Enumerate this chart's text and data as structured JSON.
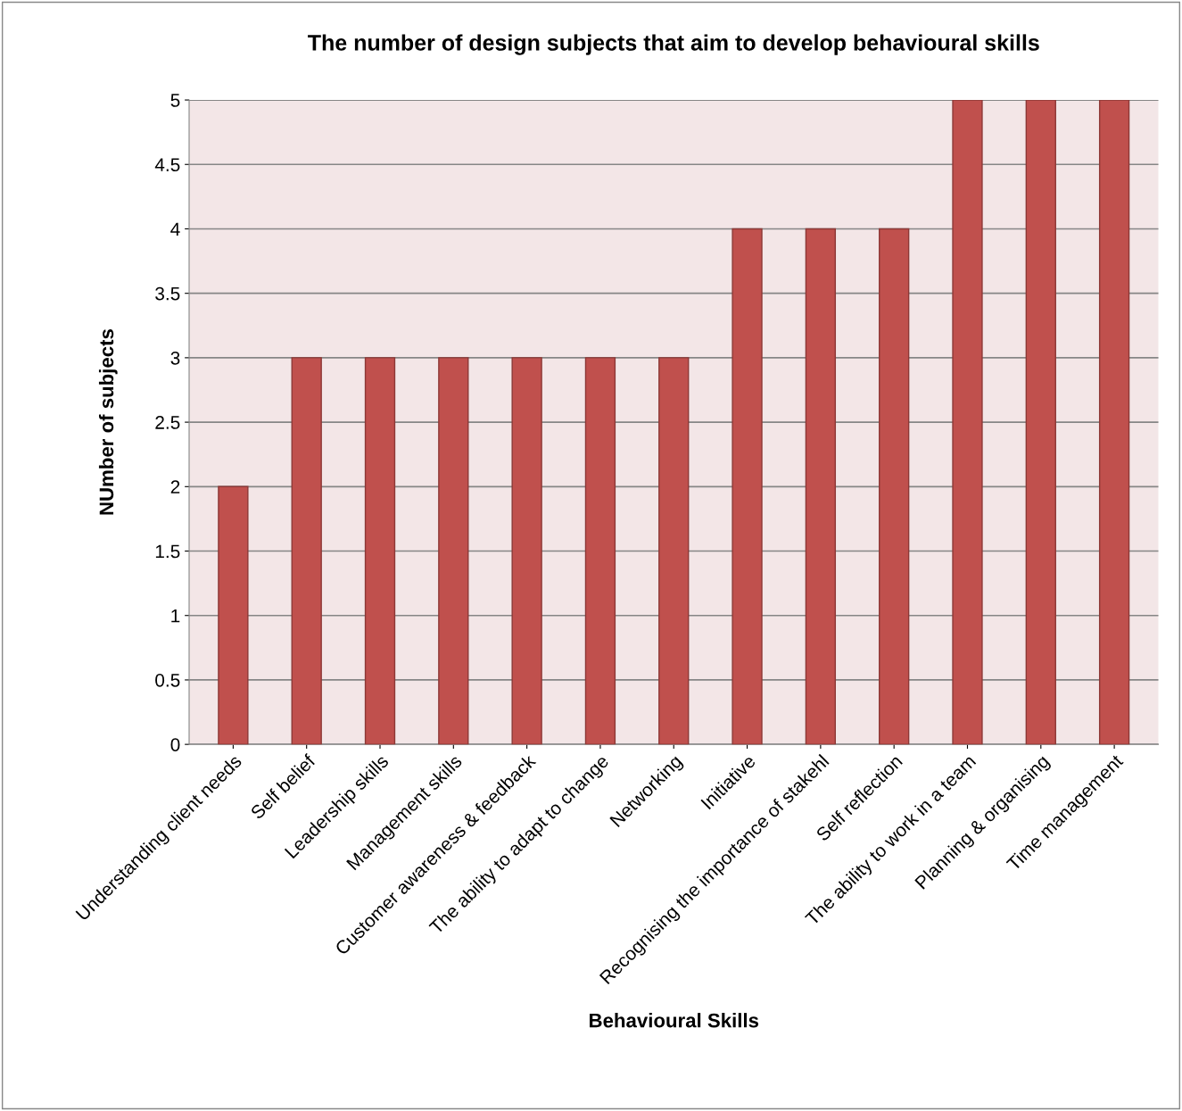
{
  "chart_data": {
    "type": "bar",
    "title": "The number of design subjects that aim to develop behavioural skills",
    "xlabel": "Behavioural Skills",
    "ylabel": "NUmber of subjects",
    "categories": [
      "Understanding client needs",
      "Self belief",
      "Leadership skills",
      "Management skills",
      "Customer awareness & feedback",
      "The ability to adapt to change",
      "Networking",
      "Initiative",
      "Recognising the importance of stakehl",
      "Self reflection",
      "The ability to work in a team",
      "Planning & organising",
      "Time management"
    ],
    "values": [
      2,
      3,
      3,
      3,
      3,
      3,
      3,
      4,
      4,
      4,
      5,
      5,
      5
    ],
    "color": "#c0504d",
    "ylim": [
      0,
      5
    ],
    "yticks": [
      0,
      0.5,
      1,
      1.5,
      2,
      2.5,
      3,
      3.5,
      4,
      4.5,
      5
    ],
    "grid": "y",
    "legend": false
  }
}
